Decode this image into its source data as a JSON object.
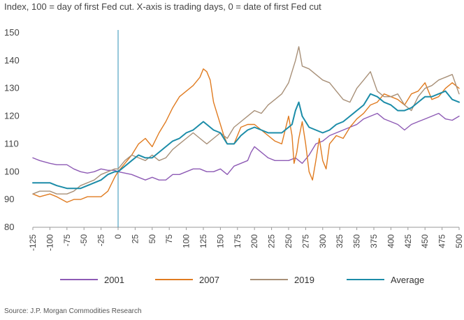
{
  "chart_data": {
    "type": "line",
    "title": "",
    "subtitle": "Index, 100 = day of first Fed cut. X-axis is trading days, 0 = date of first Fed cut",
    "xlabel": "",
    "ylabel": "",
    "xlim": [
      -125,
      500
    ],
    "ylim": [
      80,
      150
    ],
    "x_ticks": [
      -125,
      -100,
      -75,
      -50,
      -25,
      0,
      25,
      50,
      75,
      100,
      125,
      150,
      175,
      200,
      225,
      250,
      275,
      300,
      325,
      350,
      375,
      400,
      425,
      450,
      475,
      500
    ],
    "x_tick_labels": [
      "-125",
      "-100",
      "-75",
      "-50",
      "-25",
      "0",
      "25",
      "50",
      "75",
      "100",
      "125",
      "150",
      "175",
      "200",
      "225",
      "250",
      "275",
      "300",
      "325",
      "350",
      "375",
      "400",
      "425",
      "450",
      "475",
      "500"
    ],
    "y_ticks": [
      80,
      90,
      100,
      110,
      120,
      130,
      140,
      150
    ],
    "y_tick_labels": [
      "80",
      "90",
      "100",
      "110",
      "120",
      "130",
      "140",
      "150"
    ],
    "grid": false,
    "vertical_marker": {
      "x": 0,
      "color": "#2E8FB5"
    },
    "legend_position": "bottom",
    "series": [
      {
        "name": "2001",
        "color": "#8E5BB5",
        "points": [
          [
            -125,
            105
          ],
          [
            -115,
            104
          ],
          [
            -100,
            103
          ],
          [
            -90,
            102.5
          ],
          [
            -75,
            102.5
          ],
          [
            -65,
            101
          ],
          [
            -55,
            100
          ],
          [
            -45,
            99.5
          ],
          [
            -35,
            100
          ],
          [
            -25,
            101
          ],
          [
            -15,
            100.5
          ],
          [
            -5,
            100.5
          ],
          [
            0,
            100
          ],
          [
            10,
            99.5
          ],
          [
            20,
            99
          ],
          [
            30,
            98
          ],
          [
            40,
            97
          ],
          [
            50,
            98
          ],
          [
            60,
            97
          ],
          [
            70,
            97
          ],
          [
            80,
            99
          ],
          [
            90,
            99
          ],
          [
            100,
            100
          ],
          [
            110,
            101
          ],
          [
            120,
            101
          ],
          [
            130,
            100
          ],
          [
            140,
            100
          ],
          [
            150,
            101
          ],
          [
            160,
            99
          ],
          [
            170,
            102
          ],
          [
            180,
            103
          ],
          [
            190,
            104
          ],
          [
            195,
            107
          ],
          [
            200,
            109
          ],
          [
            210,
            107
          ],
          [
            220,
            105
          ],
          [
            230,
            104
          ],
          [
            240,
            104
          ],
          [
            250,
            104
          ],
          [
            260,
            105
          ],
          [
            270,
            103
          ],
          [
            280,
            106
          ],
          [
            290,
            110
          ],
          [
            300,
            111
          ],
          [
            310,
            113
          ],
          [
            320,
            114
          ],
          [
            330,
            115
          ],
          [
            340,
            116
          ],
          [
            350,
            117
          ],
          [
            360,
            119
          ],
          [
            370,
            120
          ],
          [
            380,
            121
          ],
          [
            390,
            119
          ],
          [
            400,
            118
          ],
          [
            410,
            117
          ],
          [
            420,
            115
          ],
          [
            430,
            117
          ],
          [
            440,
            118
          ],
          [
            450,
            119
          ],
          [
            460,
            120
          ],
          [
            470,
            121
          ],
          [
            480,
            119
          ],
          [
            490,
            118.5
          ],
          [
            500,
            120
          ]
        ]
      },
      {
        "name": "2007",
        "color": "#E07B20",
        "points": [
          [
            -125,
            92
          ],
          [
            -115,
            91
          ],
          [
            -100,
            92
          ],
          [
            -90,
            91
          ],
          [
            -75,
            89
          ],
          [
            -65,
            90
          ],
          [
            -55,
            90
          ],
          [
            -45,
            91
          ],
          [
            -35,
            91
          ],
          [
            -25,
            91
          ],
          [
            -15,
            93
          ],
          [
            -5,
            98
          ],
          [
            0,
            100
          ],
          [
            10,
            103
          ],
          [
            20,
            106
          ],
          [
            30,
            110
          ],
          [
            40,
            112
          ],
          [
            50,
            109
          ],
          [
            60,
            114
          ],
          [
            70,
            118
          ],
          [
            80,
            123
          ],
          [
            90,
            127
          ],
          [
            100,
            129
          ],
          [
            110,
            131
          ],
          [
            120,
            134
          ],
          [
            125,
            137
          ],
          [
            130,
            136
          ],
          [
            135,
            133
          ],
          [
            140,
            125
          ],
          [
            145,
            121
          ],
          [
            150,
            117
          ],
          [
            155,
            113
          ],
          [
            160,
            110
          ],
          [
            170,
            110
          ],
          [
            180,
            116
          ],
          [
            190,
            117
          ],
          [
            200,
            117
          ],
          [
            210,
            115
          ],
          [
            220,
            113
          ],
          [
            230,
            111
          ],
          [
            240,
            110
          ],
          [
            245,
            115
          ],
          [
            250,
            120
          ],
          [
            255,
            113
          ],
          [
            258,
            103
          ],
          [
            262,
            107
          ],
          [
            265,
            112
          ],
          [
            270,
            118
          ],
          [
            275,
            110
          ],
          [
            280,
            100
          ],
          [
            285,
            97
          ],
          [
            290,
            104
          ],
          [
            295,
            112
          ],
          [
            300,
            104
          ],
          [
            305,
            101
          ],
          [
            310,
            110
          ],
          [
            320,
            113
          ],
          [
            330,
            112
          ],
          [
            340,
            116
          ],
          [
            350,
            119
          ],
          [
            360,
            121
          ],
          [
            370,
            124
          ],
          [
            380,
            125
          ],
          [
            390,
            128
          ],
          [
            400,
            127
          ],
          [
            410,
            126
          ],
          [
            420,
            124
          ],
          [
            430,
            128
          ],
          [
            440,
            129
          ],
          [
            450,
            132
          ],
          [
            460,
            126
          ],
          [
            470,
            127
          ],
          [
            480,
            130
          ],
          [
            490,
            132
          ],
          [
            500,
            130
          ]
        ]
      },
      {
        "name": "2019",
        "color": "#A89078",
        "points": [
          [
            -125,
            92
          ],
          [
            -115,
            93
          ],
          [
            -100,
            93
          ],
          [
            -90,
            92
          ],
          [
            -75,
            92
          ],
          [
            -65,
            93
          ],
          [
            -55,
            95
          ],
          [
            -45,
            96
          ],
          [
            -35,
            97
          ],
          [
            -25,
            99
          ],
          [
            -15,
            100
          ],
          [
            -5,
            101
          ],
          [
            0,
            101
          ],
          [
            10,
            104
          ],
          [
            20,
            106
          ],
          [
            30,
            105
          ],
          [
            40,
            104
          ],
          [
            50,
            106
          ],
          [
            60,
            104
          ],
          [
            70,
            105
          ],
          [
            80,
            108
          ],
          [
            90,
            110
          ],
          [
            100,
            112
          ],
          [
            110,
            114
          ],
          [
            120,
            112
          ],
          [
            130,
            110
          ],
          [
            140,
            112
          ],
          [
            150,
            114
          ],
          [
            160,
            112
          ],
          [
            170,
            116
          ],
          [
            180,
            118
          ],
          [
            190,
            120
          ],
          [
            200,
            122
          ],
          [
            210,
            121
          ],
          [
            220,
            124
          ],
          [
            230,
            126
          ],
          [
            240,
            128
          ],
          [
            250,
            132
          ],
          [
            255,
            136
          ],
          [
            260,
            140
          ],
          [
            265,
            145
          ],
          [
            270,
            138
          ],
          [
            280,
            137
          ],
          [
            290,
            135
          ],
          [
            300,
            133
          ],
          [
            310,
            132
          ],
          [
            320,
            129
          ],
          [
            330,
            126
          ],
          [
            340,
            125
          ],
          [
            350,
            130
          ],
          [
            360,
            133
          ],
          [
            370,
            136
          ],
          [
            380,
            129
          ],
          [
            390,
            127
          ],
          [
            400,
            127
          ],
          [
            410,
            128
          ],
          [
            420,
            124
          ],
          [
            430,
            122
          ],
          [
            440,
            127
          ],
          [
            450,
            130
          ],
          [
            460,
            131
          ],
          [
            470,
            133
          ],
          [
            480,
            134
          ],
          [
            490,
            135
          ],
          [
            500,
            128
          ]
        ]
      },
      {
        "name": "Average",
        "color": "#1B8CA8",
        "points": [
          [
            -125,
            96
          ],
          [
            -115,
            96
          ],
          [
            -100,
            96
          ],
          [
            -90,
            95
          ],
          [
            -75,
            94
          ],
          [
            -65,
            94
          ],
          [
            -55,
            94
          ],
          [
            -45,
            95
          ],
          [
            -35,
            96
          ],
          [
            -25,
            97
          ],
          [
            -15,
            99
          ],
          [
            -5,
            100
          ],
          [
            0,
            100
          ],
          [
            10,
            102
          ],
          [
            20,
            104
          ],
          [
            30,
            106
          ],
          [
            40,
            105
          ],
          [
            50,
            105
          ],
          [
            60,
            107
          ],
          [
            70,
            109
          ],
          [
            80,
            111
          ],
          [
            90,
            112
          ],
          [
            100,
            114
          ],
          [
            110,
            115
          ],
          [
            120,
            117
          ],
          [
            125,
            118
          ],
          [
            130,
            117
          ],
          [
            140,
            115
          ],
          [
            150,
            114
          ],
          [
            160,
            110
          ],
          [
            170,
            110
          ],
          [
            180,
            113
          ],
          [
            190,
            115
          ],
          [
            200,
            116
          ],
          [
            210,
            115
          ],
          [
            220,
            114
          ],
          [
            230,
            114
          ],
          [
            240,
            114
          ],
          [
            250,
            116
          ],
          [
            255,
            117
          ],
          [
            260,
            122
          ],
          [
            265,
            125
          ],
          [
            270,
            120
          ],
          [
            280,
            116
          ],
          [
            290,
            115
          ],
          [
            300,
            114
          ],
          [
            310,
            115
          ],
          [
            320,
            117
          ],
          [
            330,
            118
          ],
          [
            340,
            120
          ],
          [
            350,
            122
          ],
          [
            360,
            124
          ],
          [
            370,
            128
          ],
          [
            380,
            127
          ],
          [
            390,
            125
          ],
          [
            400,
            124
          ],
          [
            410,
            122
          ],
          [
            420,
            122
          ],
          [
            430,
            123
          ],
          [
            440,
            125
          ],
          [
            450,
            127
          ],
          [
            460,
            127
          ],
          [
            470,
            128
          ],
          [
            480,
            129
          ],
          [
            490,
            126
          ],
          [
            500,
            125
          ]
        ]
      }
    ]
  },
  "footer": {
    "source": "Source: J.P. Morgan Commodities Research"
  }
}
